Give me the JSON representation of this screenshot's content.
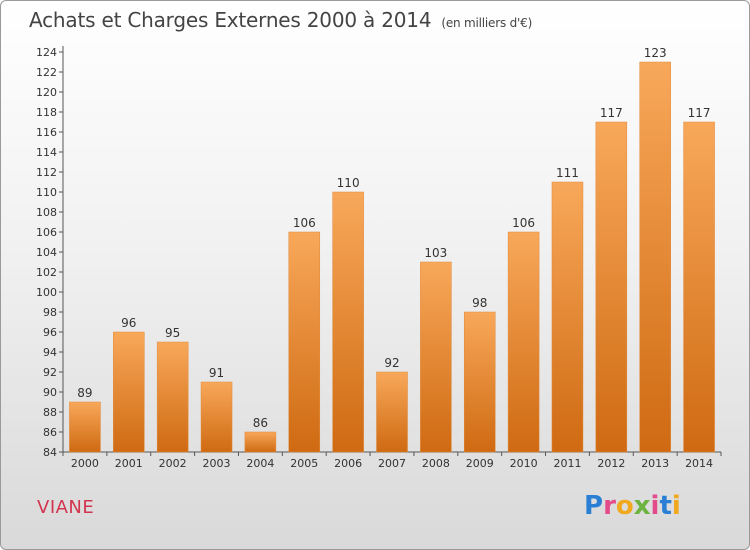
{
  "header": {
    "title": "Achats et Charges Externes 2000 à 2014",
    "unit": "(en milliers d'€)"
  },
  "footer": {
    "place": "VIANE",
    "logo": "Proxiti",
    "logo_colors": [
      "#2a7fd4",
      "#e34b8a",
      "#f0a81c",
      "#6cb33f",
      "#e34b8a",
      "#2a7fd4",
      "#f0a81c"
    ]
  },
  "chart_data": {
    "type": "bar",
    "categories": [
      "2000",
      "2001",
      "2002",
      "2003",
      "2004",
      "2005",
      "2006",
      "2007",
      "2008",
      "2009",
      "2010",
      "2011",
      "2012",
      "2013",
      "2014"
    ],
    "values": [
      89,
      96,
      95,
      91,
      86,
      106,
      110,
      92,
      103,
      98,
      106,
      111,
      117,
      123,
      117
    ],
    "data_labels": [
      "89",
      "96",
      "95",
      "91",
      "86",
      "106",
      "110",
      "92",
      "103",
      "98",
      "106",
      "111",
      "117",
      "123",
      "117"
    ],
    "yticks": [
      "84",
      "86",
      "88",
      "90",
      "92",
      "94",
      "96",
      "98",
      "100",
      "102",
      "104",
      "106",
      "108",
      "110",
      "112",
      "114",
      "116",
      "118",
      "120",
      "122",
      "124"
    ],
    "ylim": [
      84,
      124
    ],
    "grid": false,
    "bar_color_top": "#f8a85a",
    "bar_color_bottom": "#cf6a12"
  }
}
